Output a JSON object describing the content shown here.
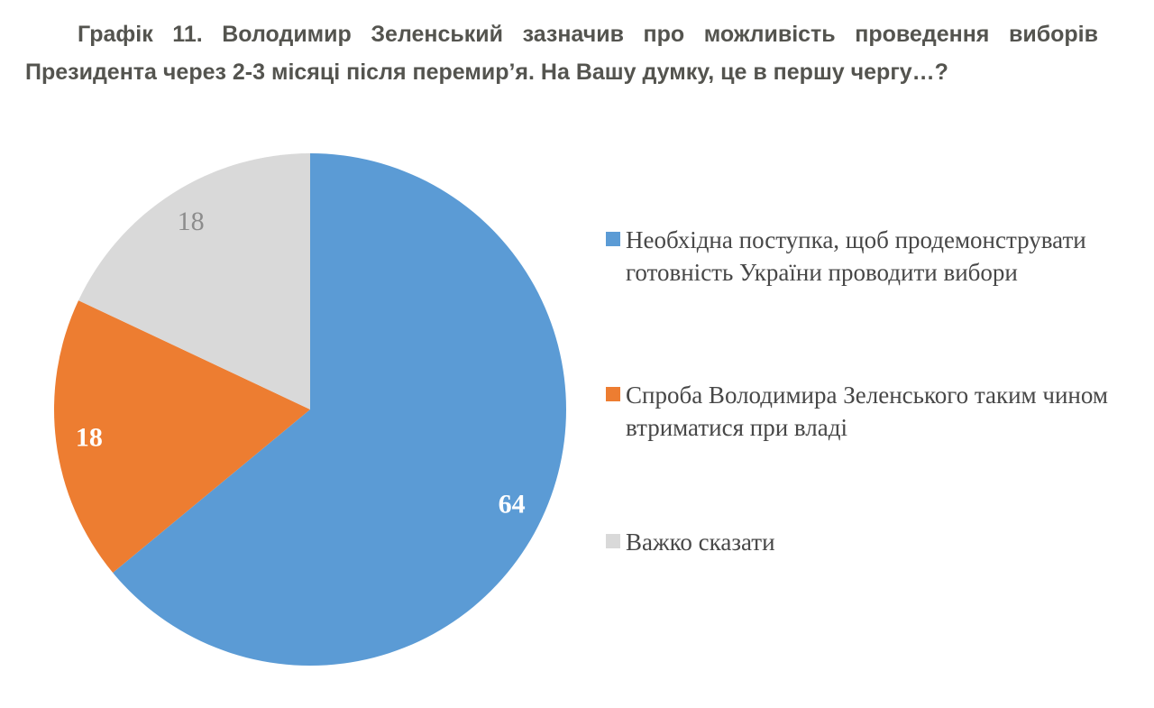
{
  "chart_data": {
    "type": "pie",
    "title": "Графік 11. Володимир Зеленський зазначив про можливість проведення виборів Президента через 2-3 місяці після перемир’я. На Вашу думку, це в першу чергу…?",
    "legend_position": "right",
    "start_angle_deg": 0,
    "direction": "clockwise",
    "background_color": "#FFFFFF",
    "title_color": "#54544F",
    "legend_text_color": "#474747",
    "slices": [
      {
        "label": "Необхідна поступка, щоб продемонструвати готовність України проводити вибори",
        "value": 64,
        "color": "#5B9BD5",
        "value_label_color": "#FFFFFF",
        "value_label_weight": "bold"
      },
      {
        "label": "Спроба Володимира Зеленського таким чином втриматися при владі",
        "value": 18,
        "color": "#ED7D31",
        "value_label_color": "#FFFFFF",
        "value_label_weight": "bold"
      },
      {
        "label": "Важко сказати",
        "value": 18,
        "color": "#D9D9D9",
        "value_label_color": "#8C8C8C",
        "value_label_weight": "normal"
      }
    ]
  }
}
